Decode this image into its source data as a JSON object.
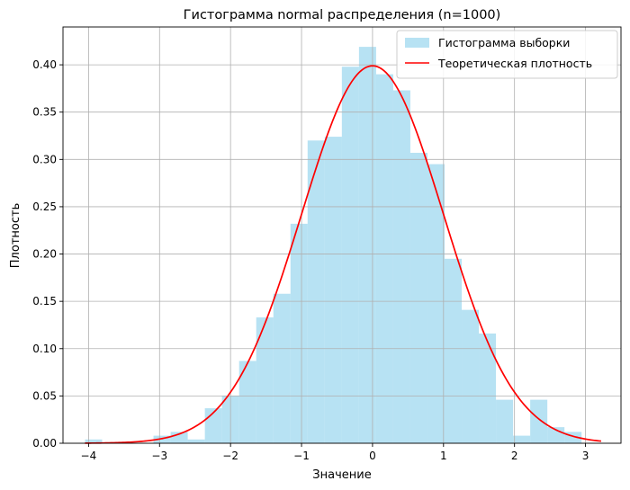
{
  "chart_data": {
    "type": "bar",
    "title": "Гистограмма normal распределения (n=1000)",
    "xlabel": "Значение",
    "ylabel": "Плотность",
    "xlim": [
      -4.36,
      3.5
    ],
    "ylim": [
      0,
      0.44
    ],
    "xticks": [
      -4,
      -3,
      -2,
      -1,
      0,
      1,
      2,
      3
    ],
    "yticks": [
      0.0,
      0.05,
      0.1,
      0.15,
      0.2,
      0.25,
      0.3,
      0.35,
      0.4
    ],
    "grid": true,
    "legend_position": "top-right",
    "colors": {
      "histogram": "#87ceeb",
      "density": "#ff0000",
      "grid": "#b0b0b0"
    },
    "series": [
      {
        "name": "Гистограмма выборки",
        "type": "histogram",
        "bin_start": -4.05,
        "bin_width": 0.2412,
        "values": [
          0.004,
          0.0,
          0.0,
          0.0,
          0.008,
          0.012,
          0.004,
          0.037,
          0.05,
          0.087,
          0.133,
          0.158,
          0.232,
          0.32,
          0.324,
          0.398,
          0.419,
          0.39,
          0.373,
          0.307,
          0.295,
          0.195,
          0.141,
          0.116,
          0.046,
          0.008,
          0.046,
          0.017,
          0.012
        ]
      },
      {
        "name": "Теоретическая плотность",
        "type": "line",
        "distribution": "normal",
        "mean": 0,
        "std": 1,
        "x_range": [
          -4.05,
          3.22
        ]
      }
    ]
  }
}
